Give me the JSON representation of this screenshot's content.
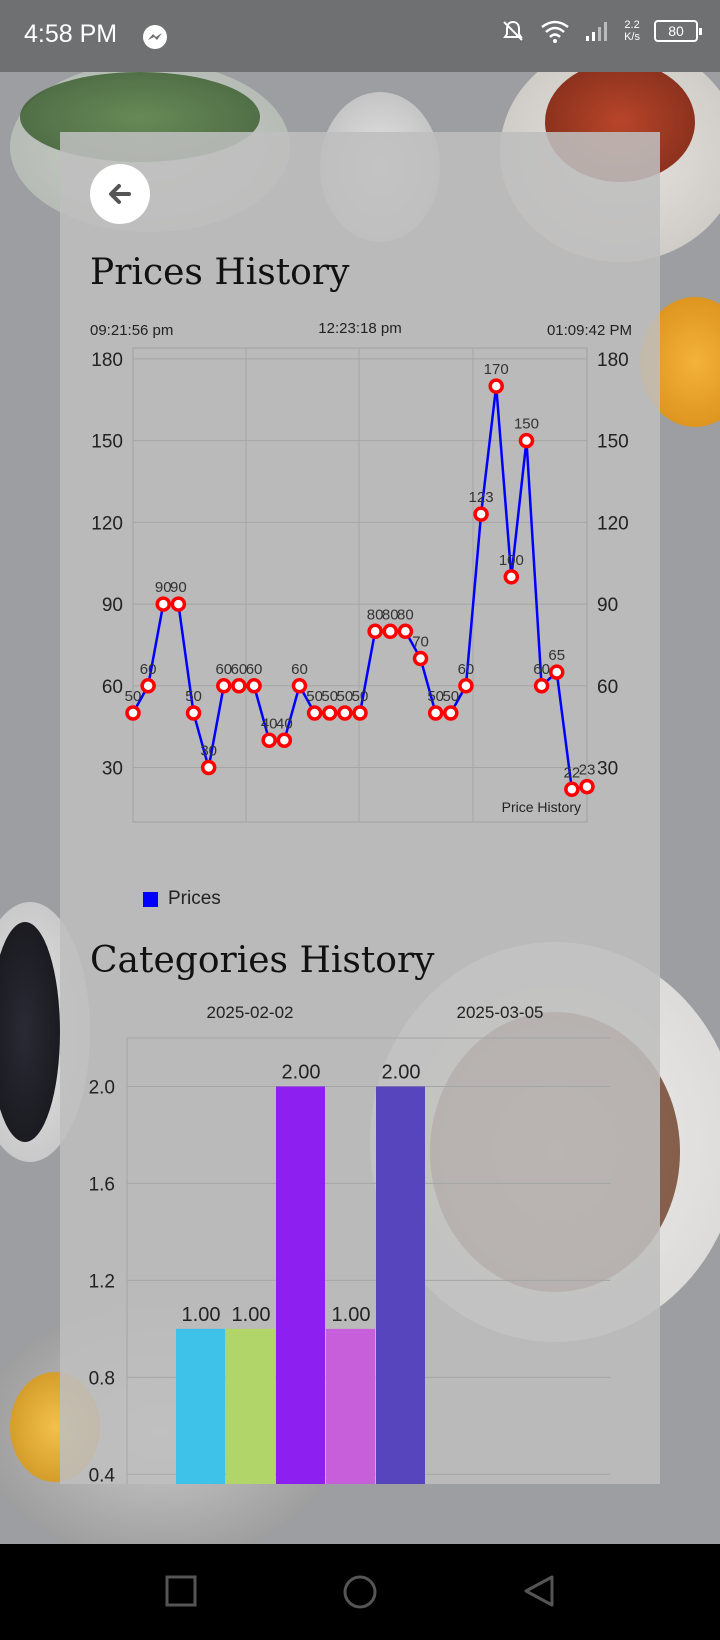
{
  "status_bar": {
    "time": "4:58 PM",
    "net_speed_value": "2.2",
    "net_speed_unit": "K/s",
    "battery": "80",
    "icons": [
      "messenger-icon",
      "notifications-off-icon",
      "wifi-icon",
      "signal-icon",
      "battery-icon"
    ]
  },
  "header": {
    "back_icon": "arrow-left-icon"
  },
  "prices_title": "Prices History",
  "categories_title": "Categories History",
  "chart_data": [
    {
      "type": "line",
      "title": "Prices History",
      "top_time_labels": [
        "09:21:56 pm",
        "12:23:18 pm",
        "01:09:42 PM"
      ],
      "y_ticks": [
        30,
        60,
        90,
        120,
        150,
        180
      ],
      "ylim": [
        10,
        184
      ],
      "description_label": "Price History",
      "series": [
        {
          "name": "Prices",
          "color": "#0000ff",
          "marker_color": "#ff0000",
          "values": [
            50,
            60,
            90,
            90,
            50,
            30,
            60,
            60,
            60,
            40,
            40,
            60,
            50,
            50,
            50,
            50,
            80,
            80,
            80,
            70,
            50,
            50,
            60,
            123,
            170,
            100,
            150,
            60,
            65,
            22,
            23
          ]
        }
      ],
      "legend": "bottom-left",
      "grid": true
    },
    {
      "type": "bar",
      "title": "Categories History",
      "top_date_labels": [
        "2025-02-02",
        "2025-03-05"
      ],
      "y_ticks": [
        0.4,
        0.8,
        1.2,
        1.6,
        2.0
      ],
      "ylim": [
        0.36,
        2.2
      ],
      "values": [
        1.0,
        1.0,
        2.0,
        1.0,
        2.0
      ],
      "value_labels": [
        "1.00",
        "1.00",
        "2.00",
        "1.00",
        "2.00"
      ],
      "colors": [
        "#3fc2ea",
        "#b2d56a",
        "#8d1ff0",
        "#c65fd9",
        "#5645bd"
      ],
      "grid": true
    }
  ]
}
